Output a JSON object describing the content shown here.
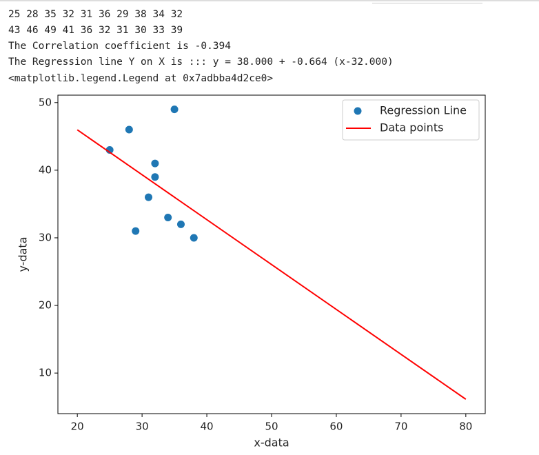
{
  "output_lines": [
    "25 28 35 32 31 36 29 38 34 32",
    "43 46 49 41 36 32 31 30 33 39",
    "The Correlation coefficient is -0.394",
    "The Regression line Y on X is ::: y = 38.000 + -0.664 (x-32.000)",
    "<matplotlib.legend.Legend at 0x7adbba4d2ce0>"
  ],
  "chart_data": {
    "type": "scatter",
    "series": [
      {
        "name": "Regression Line",
        "type": "scatter",
        "color": "#1f77b4",
        "x": [
          25,
          28,
          35,
          32,
          31,
          36,
          29,
          38,
          34,
          32
        ],
        "values": [
          43,
          46,
          49,
          41,
          36,
          32,
          31,
          30,
          33,
          39
        ]
      },
      {
        "name": "Data points",
        "type": "line",
        "color": "#ff0000",
        "x": [
          20,
          80
        ],
        "values": [
          45.968,
          6.128
        ]
      }
    ],
    "xlabel": "x-data",
    "ylabel": "y-data",
    "xlim": [
      17,
      83
    ],
    "ylim": [
      4.0,
      51.1
    ],
    "xticks": [
      20,
      30,
      40,
      50,
      60,
      70,
      80
    ],
    "yticks": [
      10,
      20,
      30,
      40,
      50
    ],
    "legend": "upper right"
  }
}
